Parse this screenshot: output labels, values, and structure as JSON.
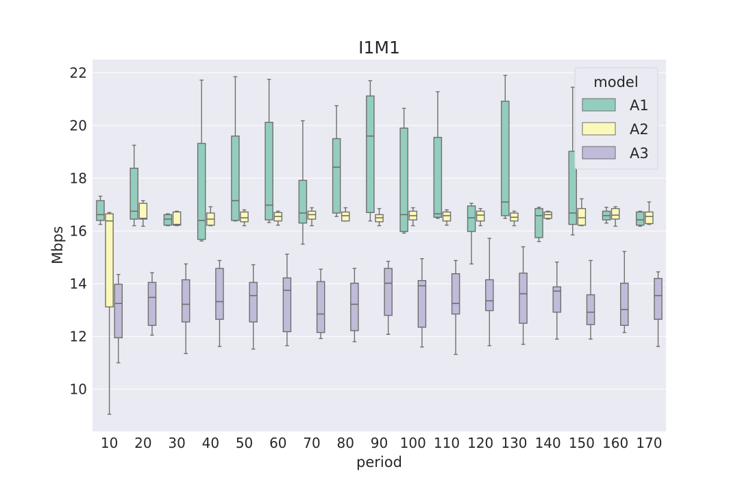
{
  "chart_data": {
    "type": "boxplot",
    "title": "I1M1",
    "xlabel": "period",
    "ylabel": "Mbps",
    "ylim": [
      8.4,
      22.5
    ],
    "yticks": [
      10,
      12,
      14,
      16,
      18,
      20,
      22
    ],
    "grid": true,
    "legend": {
      "title": "model",
      "placement": "top-right"
    },
    "categories": [
      "10",
      "20",
      "30",
      "40",
      "50",
      "60",
      "70",
      "80",
      "90",
      "100",
      "110",
      "120",
      "130",
      "140",
      "150",
      "160",
      "170"
    ],
    "series": [
      {
        "name": "A1",
        "color": "#93cdbe",
        "boxes": [
          {
            "whislo": 16.25,
            "q1": 16.4,
            "med": 16.62,
            "q3": 17.15,
            "whishi": 17.32
          },
          {
            "whislo": 16.2,
            "q1": 16.45,
            "med": 16.75,
            "q3": 18.38,
            "whishi": 19.25
          },
          {
            "whislo": 16.2,
            "q1": 16.22,
            "med": 16.45,
            "q3": 16.62,
            "whishi": 16.65
          },
          {
            "whislo": 15.62,
            "q1": 15.68,
            "med": 16.4,
            "q3": 19.32,
            "whishi": 21.72
          },
          {
            "whislo": 16.38,
            "q1": 16.4,
            "med": 17.15,
            "q3": 19.6,
            "whishi": 21.85
          },
          {
            "whislo": 16.32,
            "q1": 16.42,
            "med": 16.98,
            "q3": 20.12,
            "whishi": 21.75
          },
          {
            "whislo": 15.5,
            "q1": 16.3,
            "med": 16.68,
            "q3": 17.92,
            "whishi": 20.18
          },
          {
            "whislo": 16.55,
            "q1": 16.68,
            "med": 18.42,
            "q3": 19.5,
            "whishi": 20.75
          },
          {
            "whislo": 16.38,
            "q1": 16.7,
            "med": 19.6,
            "q3": 21.12,
            "whishi": 21.7
          },
          {
            "whislo": 15.92,
            "q1": 15.98,
            "med": 16.62,
            "q3": 19.9,
            "whishi": 20.65
          },
          {
            "whislo": 16.48,
            "q1": 16.52,
            "med": 16.65,
            "q3": 19.55,
            "whishi": 21.28
          },
          {
            "whislo": 14.75,
            "q1": 15.98,
            "med": 16.5,
            "q3": 16.95,
            "whishi": 17.05
          },
          {
            "whislo": 16.48,
            "q1": 16.58,
            "med": 17.1,
            "q3": 20.92,
            "whishi": 21.9
          },
          {
            "whislo": 15.6,
            "q1": 15.75,
            "med": 16.58,
            "q3": 16.85,
            "whishi": 16.9
          },
          {
            "whislo": 15.85,
            "q1": 16.25,
            "med": 16.68,
            "q3": 19.02,
            "whishi": 21.45
          },
          {
            "whislo": 16.3,
            "q1": 16.42,
            "med": 16.58,
            "q3": 16.75,
            "whishi": 16.9
          },
          {
            "whislo": 16.18,
            "q1": 16.22,
            "med": 16.42,
            "q3": 16.72,
            "whishi": 16.75
          }
        ]
      },
      {
        "name": "A2",
        "color": "#fbf9b9",
        "boxes": [
          {
            "whislo": 9.05,
            "q1": 13.12,
            "med": 16.38,
            "q3": 16.65,
            "whishi": 16.7
          },
          {
            "whislo": 16.18,
            "q1": 16.45,
            "med": 16.48,
            "q3": 17.05,
            "whishi": 17.15
          },
          {
            "whislo": 16.2,
            "q1": 16.22,
            "med": 16.25,
            "q3": 16.72,
            "whishi": 16.75
          },
          {
            "whislo": 16.2,
            "q1": 16.22,
            "med": 16.45,
            "q3": 16.68,
            "whishi": 16.92
          },
          {
            "whislo": 16.2,
            "q1": 16.35,
            "med": 16.5,
            "q3": 16.72,
            "whishi": 16.8
          },
          {
            "whislo": 16.22,
            "q1": 16.38,
            "med": 16.55,
            "q3": 16.7,
            "whishi": 16.75
          },
          {
            "whislo": 16.2,
            "q1": 16.45,
            "med": 16.62,
            "q3": 16.75,
            "whishi": 16.88
          },
          {
            "whislo": 16.38,
            "q1": 16.38,
            "med": 16.58,
            "q3": 16.72,
            "whishi": 16.88
          },
          {
            "whislo": 16.2,
            "q1": 16.35,
            "med": 16.5,
            "q3": 16.62,
            "whishi": 16.85
          },
          {
            "whislo": 16.2,
            "q1": 16.42,
            "med": 16.58,
            "q3": 16.75,
            "whishi": 16.88
          },
          {
            "whislo": 16.22,
            "q1": 16.38,
            "med": 16.58,
            "q3": 16.72,
            "whishi": 16.8
          },
          {
            "whislo": 16.2,
            "q1": 16.38,
            "med": 16.6,
            "q3": 16.75,
            "whishi": 16.85
          },
          {
            "whislo": 16.2,
            "q1": 16.38,
            "med": 16.52,
            "q3": 16.68,
            "whishi": 16.75
          },
          {
            "whislo": 16.45,
            "q1": 16.48,
            "med": 16.62,
            "q3": 16.72,
            "whishi": 16.75
          },
          {
            "whislo": 16.2,
            "q1": 16.22,
            "med": 16.5,
            "q3": 16.85,
            "whishi": 17.22
          },
          {
            "whislo": 16.18,
            "q1": 16.45,
            "med": 16.6,
            "q3": 16.85,
            "whishi": 16.92
          },
          {
            "whislo": 16.25,
            "q1": 16.28,
            "med": 16.55,
            "q3": 16.72,
            "whishi": 17.1
          }
        ]
      },
      {
        "name": "A3",
        "color": "#bfbbd8",
        "boxes": [
          {
            "whislo": 11.0,
            "q1": 11.95,
            "med": 13.25,
            "q3": 13.98,
            "whishi": 14.35
          },
          {
            "whislo": 12.05,
            "q1": 12.42,
            "med": 13.48,
            "q3": 14.05,
            "whishi": 14.42
          },
          {
            "whislo": 11.35,
            "q1": 12.55,
            "med": 13.22,
            "q3": 14.15,
            "whishi": 14.75
          },
          {
            "whislo": 11.62,
            "q1": 12.65,
            "med": 13.32,
            "q3": 14.58,
            "whishi": 14.88
          },
          {
            "whislo": 11.52,
            "q1": 12.55,
            "med": 13.55,
            "q3": 14.05,
            "whishi": 14.72
          },
          {
            "whislo": 11.65,
            "q1": 12.18,
            "med": 13.75,
            "q3": 14.22,
            "whishi": 15.12
          },
          {
            "whislo": 11.92,
            "q1": 12.15,
            "med": 12.85,
            "q3": 14.08,
            "whishi": 14.55
          },
          {
            "whislo": 11.8,
            "q1": 12.22,
            "med": 13.22,
            "q3": 14.02,
            "whishi": 14.58
          },
          {
            "whislo": 12.08,
            "q1": 12.8,
            "med": 14.02,
            "q3": 14.58,
            "whishi": 14.85
          },
          {
            "whislo": 11.6,
            "q1": 12.35,
            "med": 13.92,
            "q3": 14.12,
            "whishi": 14.95
          },
          {
            "whislo": 11.32,
            "q1": 12.85,
            "med": 13.25,
            "q3": 14.38,
            "whishi": 14.88
          },
          {
            "whislo": 11.65,
            "q1": 12.98,
            "med": 13.35,
            "q3": 14.15,
            "whishi": 15.72
          },
          {
            "whislo": 11.7,
            "q1": 12.5,
            "med": 13.62,
            "q3": 14.4,
            "whishi": 15.4
          },
          {
            "whislo": 11.9,
            "q1": 12.92,
            "med": 13.72,
            "q3": 13.88,
            "whishi": 14.82
          },
          {
            "whislo": 11.9,
            "q1": 12.45,
            "med": 12.92,
            "q3": 13.58,
            "whishi": 14.88
          },
          {
            "whislo": 12.15,
            "q1": 12.42,
            "med": 13.02,
            "q3": 14.02,
            "whishi": 15.22
          },
          {
            "whislo": 11.62,
            "q1": 12.65,
            "med": 13.55,
            "q3": 14.2,
            "whishi": 14.45
          }
        ]
      }
    ]
  }
}
